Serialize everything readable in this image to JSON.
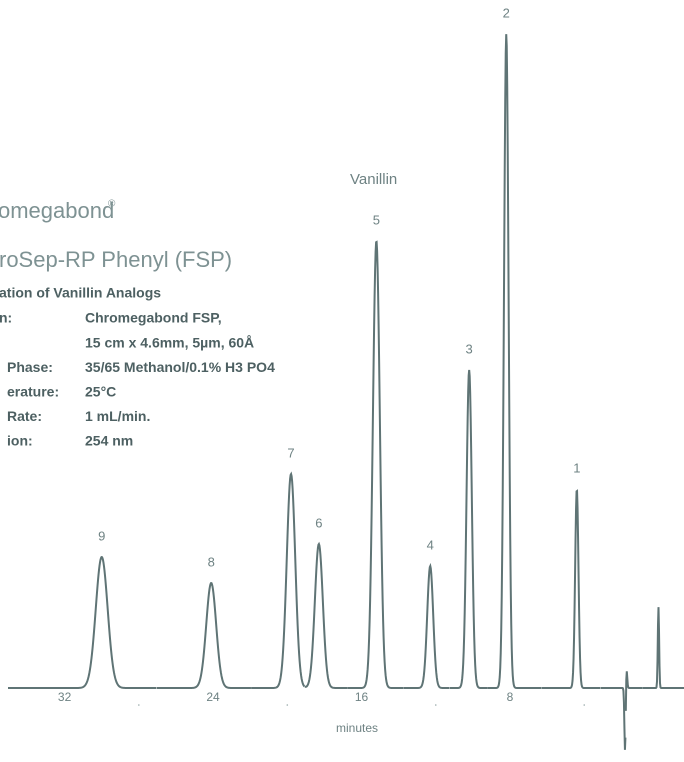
{
  "chart_data": {
    "type": "chromatogram",
    "title": "omegabond",
    "title_mark": "®",
    "subtitle": "roSep-RP Phenyl (FSP)",
    "method_title": "ation of Vanillin Analogs",
    "method": [
      {
        "label": "n:",
        "lines": [
          "Chromegabond FSP,",
          "15 cm x 4.6mm, 5µm, 60Å"
        ]
      },
      {
        "label": "Phase:",
        "lines": [
          "35/65 Methanol/0.1% H3 PO4"
        ]
      },
      {
        "label": "erature:",
        "lines": [
          "25°C"
        ]
      },
      {
        "label": "Rate:",
        "lines": [
          "1 mL/min."
        ]
      },
      {
        "label": "ion:",
        "lines": [
          "254 nm"
        ]
      }
    ],
    "annotation": "Vanillin",
    "categories": [
      "1",
      "2",
      "3",
      "4",
      "5",
      "6",
      "7",
      "8",
      "9"
    ],
    "x": [
      4.4,
      8.2,
      10.2,
      12.3,
      15.2,
      18.3,
      19.8,
      24.1,
      30.0
    ],
    "values": [
      199,
      654,
      318,
      122,
      447,
      144,
      214,
      105,
      131
    ],
    "disturbances": {
      "x": [
        1.8,
        1.72,
        0.0
      ],
      "values": [
        -64,
        20,
        81
      ]
    },
    "color": "#5f7475",
    "xlim": [
      35.05,
      -1.43
    ],
    "xticks": [
      32,
      24,
      16,
      8
    ],
    "minor_xticks": [
      28,
      20,
      12,
      4
    ],
    "xlabel": "minutes",
    "ylim": [
      -70,
      660
    ]
  }
}
